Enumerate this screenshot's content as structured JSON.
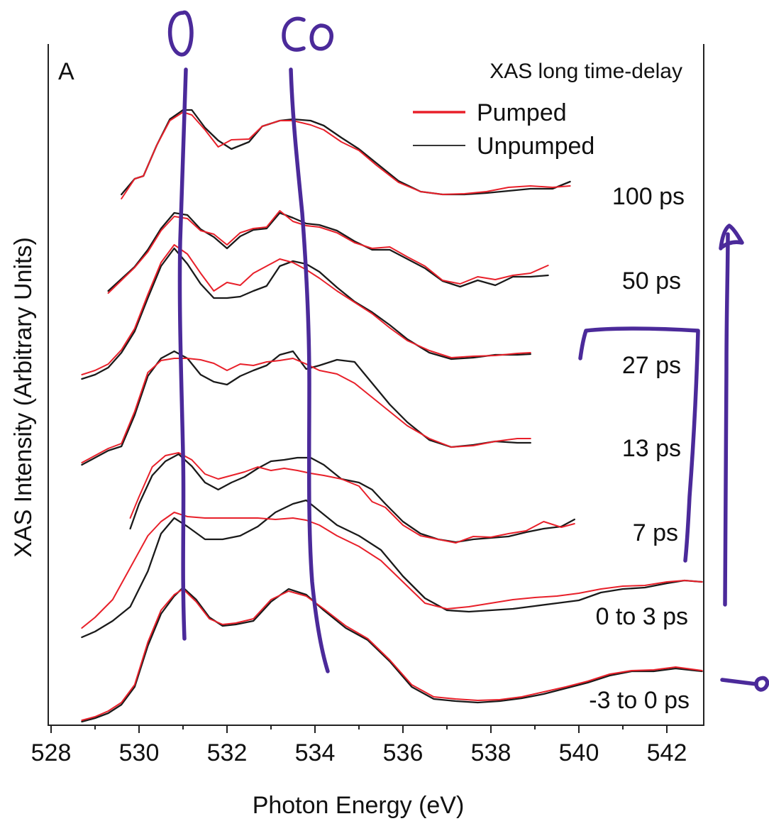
{
  "chart_data": {
    "type": "line",
    "panel_label": "A",
    "title": "XAS long time-delay",
    "xlabel": "Photon Energy (eV)",
    "ylabel": "XAS Intensity (Arbitrary Units)",
    "xlim": [
      528,
      542.8
    ],
    "xticks": [
      528,
      530,
      532,
      534,
      536,
      538,
      540,
      542
    ],
    "yticks_shown": false,
    "legend": {
      "placement": "top-right",
      "entries": [
        {
          "label": "Pumped",
          "color": "#e8202a"
        },
        {
          "label": "Unpumped",
          "color": "#1a1a1a"
        }
      ]
    },
    "colors": {
      "pumped": "#e8202a",
      "unpumped": "#1a1a1a",
      "annotation_ink": "#4b2a9a"
    },
    "handwritten_annotations": [
      "O",
      "CO"
    ],
    "traces": [
      {
        "delay": "100 ps",
        "pumped": {
          "x": [
            529.6,
            529.9,
            530.1,
            530.4,
            530.7,
            531.0,
            531.2,
            531.5,
            531.8,
            532.1,
            532.5,
            532.8,
            533.2,
            533.5,
            533.9,
            534.2,
            534.6,
            535.0,
            535.4,
            535.9,
            536.4,
            536.9,
            537.4,
            537.9,
            538.4,
            538.9,
            539.4,
            539.8
          ],
          "y": [
            280,
            252,
            248,
            205,
            170,
            158,
            162,
            183,
            207,
            197,
            196,
            178,
            170,
            170,
            176,
            183,
            200,
            212,
            233,
            257,
            270,
            274,
            273,
            270,
            264,
            262,
            264,
            262
          ]
        },
        "unpumped": {
          "x": [
            529.6,
            529.9,
            530.1,
            530.4,
            530.7,
            531.0,
            531.2,
            531.5,
            531.8,
            532.1,
            532.5,
            532.8,
            533.2,
            533.5,
            533.9,
            534.2,
            534.6,
            535.0,
            535.4,
            535.9,
            536.4,
            536.9,
            537.4,
            537.9,
            538.4,
            538.9,
            539.4,
            539.8
          ],
          "y": [
            274,
            252,
            248,
            205,
            168,
            155,
            155,
            180,
            198,
            210,
            200,
            178,
            170,
            168,
            170,
            177,
            194,
            210,
            230,
            255,
            270,
            274,
            274,
            272,
            269,
            266,
            266,
            256
          ]
        }
      },
      {
        "delay": "50 ps",
        "pumped": {
          "x": [
            529.3,
            529.6,
            529.9,
            530.2,
            530.5,
            530.8,
            531.1,
            531.4,
            531.7,
            532.0,
            532.3,
            532.6,
            532.9,
            533.2,
            533.5,
            533.8,
            534.1,
            534.5,
            534.9,
            535.3,
            535.7,
            536.1,
            536.5,
            536.9,
            537.3,
            537.7,
            538.1,
            538.5,
            538.9,
            539.3
          ],
          "y": [
            413,
            395,
            377,
            355,
            325,
            305,
            308,
            325,
            330,
            345,
            328,
            322,
            320,
            297,
            312,
            318,
            320,
            328,
            342,
            350,
            348,
            362,
            375,
            395,
            400,
            390,
            394,
            388,
            385,
            374
          ]
        },
        "unpumped": {
          "x": [
            529.3,
            529.6,
            529.9,
            530.2,
            530.5,
            530.8,
            531.1,
            531.4,
            531.7,
            532.0,
            532.3,
            532.6,
            532.9,
            533.2,
            533.5,
            533.8,
            534.1,
            534.5,
            534.9,
            535.3,
            535.7,
            536.1,
            536.5,
            536.9,
            537.3,
            537.7,
            538.1,
            538.5,
            538.9,
            539.3
          ],
          "y": [
            410,
            393,
            376,
            352,
            322,
            300,
            303,
            323,
            334,
            350,
            333,
            324,
            322,
            300,
            307,
            315,
            317,
            325,
            340,
            352,
            352,
            365,
            378,
            396,
            404,
            395,
            402,
            390,
            390,
            388
          ]
        }
      },
      {
        "delay": "27 ps",
        "pumped": {
          "x": [
            528.7,
            529.0,
            529.3,
            529.6,
            529.9,
            530.2,
            530.5,
            530.8,
            531.1,
            531.4,
            531.7,
            532.0,
            532.3,
            532.6,
            532.9,
            533.2,
            533.5,
            533.8,
            534.1,
            534.5,
            534.9,
            535.3,
            535.7,
            536.1,
            536.6,
            537.1,
            537.6,
            538.1,
            538.6,
            538.9
          ],
          "y": [
            528,
            522,
            513,
            493,
            463,
            415,
            370,
            345,
            358,
            385,
            410,
            398,
            402,
            385,
            375,
            365,
            370,
            380,
            392,
            410,
            426,
            442,
            462,
            480,
            494,
            504,
            502,
            501,
            498,
            497
          ]
        },
        "unpumped": {
          "x": [
            528.7,
            529.0,
            529.3,
            529.6,
            529.9,
            530.2,
            530.5,
            530.8,
            531.1,
            531.4,
            531.7,
            532.0,
            532.3,
            532.6,
            532.9,
            533.2,
            533.5,
            533.8,
            534.1,
            534.5,
            534.9,
            535.3,
            535.7,
            536.1,
            536.6,
            537.1,
            537.6,
            538.1,
            538.6,
            538.9
          ],
          "y": [
            534,
            528,
            518,
            497,
            467,
            420,
            375,
            350,
            372,
            400,
            420,
            420,
            418,
            410,
            403,
            375,
            368,
            372,
            383,
            405,
            425,
            440,
            458,
            478,
            497,
            506,
            504,
            500,
            500,
            499
          ]
        }
      },
      {
        "delay": "13 ps",
        "pumped": {
          "x": [
            528.7,
            529.0,
            529.3,
            529.6,
            529.9,
            530.2,
            530.5,
            530.8,
            531.1,
            531.4,
            531.7,
            532.0,
            532.3,
            532.6,
            532.9,
            533.2,
            533.5,
            533.8,
            534.1,
            534.5,
            534.9,
            535.3,
            535.7,
            536.1,
            536.6,
            537.1,
            537.6,
            538.1,
            538.6,
            538.9
          ],
          "y": [
            652,
            642,
            632,
            625,
            580,
            525,
            508,
            505,
            505,
            507,
            512,
            522,
            513,
            515,
            510,
            508,
            505,
            513,
            522,
            527,
            540,
            560,
            580,
            600,
            618,
            630,
            628,
            622,
            618,
            618
          ]
        },
        "unpumped": {
          "x": [
            528.7,
            529.0,
            529.3,
            529.6,
            529.9,
            530.2,
            530.5,
            530.8,
            531.1,
            531.4,
            531.7,
            532.0,
            532.3,
            532.6,
            532.9,
            533.2,
            533.5,
            533.8,
            534.1,
            534.5,
            534.9,
            535.3,
            535.7,
            536.1,
            536.6,
            537.1,
            537.6,
            538.1,
            538.6,
            538.9
          ],
          "y": [
            655,
            645,
            635,
            629,
            585,
            530,
            505,
            495,
            505,
            528,
            538,
            542,
            530,
            522,
            515,
            500,
            495,
            520,
            515,
            507,
            510,
            540,
            570,
            595,
            620,
            630,
            627,
            622,
            624,
            624
          ]
        }
      },
      {
        "delay": "7 ps",
        "pumped": {
          "x": [
            529.8,
            530.0,
            530.3,
            530.6,
            530.9,
            531.2,
            531.5,
            531.8,
            532.1,
            532.4,
            532.7,
            533.0,
            533.3,
            533.6,
            533.9,
            534.2,
            534.6,
            535.0,
            535.3,
            535.6,
            536.0,
            536.4,
            536.8,
            537.2,
            537.6,
            538.0,
            538.4,
            538.8,
            539.2,
            539.6,
            539.9
          ],
          "y": [
            730,
            700,
            658,
            642,
            638,
            648,
            668,
            675,
            670,
            665,
            658,
            663,
            660,
            663,
            667,
            670,
            675,
            685,
            707,
            715,
            740,
            755,
            760,
            765,
            756,
            757,
            752,
            748,
            735,
            743,
            738
          ]
        },
        "unpumped": {
          "x": [
            529.8,
            530.0,
            530.3,
            530.6,
            530.9,
            531.2,
            531.5,
            531.8,
            532.1,
            532.4,
            532.7,
            533.0,
            533.3,
            533.6,
            533.9,
            534.2,
            534.6,
            535.0,
            535.3,
            535.6,
            536.0,
            536.4,
            536.8,
            537.2,
            537.6,
            538.0,
            538.4,
            538.8,
            539.2,
            539.6,
            539.9
          ],
          "y": [
            745,
            710,
            670,
            650,
            640,
            657,
            680,
            690,
            680,
            672,
            660,
            650,
            648,
            645,
            645,
            655,
            675,
            680,
            690,
            710,
            735,
            752,
            760,
            764,
            760,
            758,
            756,
            750,
            745,
            742,
            732
          ]
        }
      },
      {
        "delay": "0 to 3 ps",
        "pumped": {
          "x": [
            528.7,
            529.0,
            529.4,
            529.8,
            530.2,
            530.5,
            530.8,
            531.1,
            531.5,
            531.9,
            532.3,
            532.7,
            533.1,
            533.5,
            533.8,
            534.1,
            534.5,
            535.0,
            535.5,
            536.0,
            536.5,
            537.0,
            537.5,
            538.0,
            538.5,
            539.0,
            539.5,
            540.0,
            540.5,
            541.0,
            541.5,
            542.0,
            542.4,
            542.8
          ],
          "y": [
            885,
            870,
            845,
            800,
            755,
            735,
            722,
            728,
            730,
            730,
            730,
            730,
            732,
            730,
            733,
            740,
            755,
            770,
            790,
            820,
            850,
            858,
            855,
            850,
            845,
            842,
            840,
            836,
            830,
            826,
            825,
            820,
            818,
            820
          ]
        },
        "unpumped": {
          "x": [
            528.7,
            529.0,
            529.4,
            529.8,
            530.2,
            530.5,
            530.8,
            531.1,
            531.5,
            531.9,
            532.3,
            532.7,
            533.1,
            533.5,
            533.8,
            534.1,
            534.5,
            535.0,
            535.5,
            536.0,
            536.5,
            537.0,
            537.5,
            538.0,
            538.5,
            539.0,
            539.5,
            540.0,
            540.5,
            541.0,
            541.5,
            542.0,
            542.4,
            542.8
          ],
          "y": [
            898,
            890,
            875,
            855,
            805,
            752,
            730,
            742,
            760,
            760,
            755,
            742,
            722,
            710,
            705,
            720,
            740,
            755,
            775,
            812,
            843,
            860,
            862,
            860,
            858,
            854,
            850,
            846,
            835,
            830,
            828,
            822,
            818,
            820
          ]
        }
      },
      {
        "delay": "-3 to 0 ps",
        "pumped": {
          "x": [
            528.7,
            529.0,
            529.3,
            529.6,
            529.9,
            530.2,
            530.5,
            530.8,
            531.0,
            531.3,
            531.6,
            531.9,
            532.2,
            532.6,
            533.0,
            533.4,
            533.8,
            534.2,
            534.7,
            535.2,
            535.7,
            536.2,
            536.7,
            537.2,
            537.7,
            538.2,
            538.7,
            539.2,
            539.7,
            540.2,
            540.7,
            541.2,
            541.7,
            542.2,
            542.8
          ],
          "y": [
            1015,
            1010,
            1002,
            990,
            965,
            905,
            860,
            838,
            830,
            848,
            872,
            880,
            878,
            872,
            845,
            833,
            840,
            858,
            882,
            900,
            930,
            965,
            982,
            985,
            987,
            986,
            982,
            975,
            968,
            960,
            950,
            945,
            944,
            940,
            945
          ]
        },
        "unpumped": {
          "x": [
            528.7,
            529.0,
            529.3,
            529.6,
            529.9,
            530.2,
            530.5,
            530.8,
            531.0,
            531.3,
            531.6,
            531.9,
            532.2,
            532.6,
            533.0,
            533.4,
            533.8,
            534.2,
            534.7,
            535.2,
            535.7,
            536.2,
            536.7,
            537.2,
            537.7,
            538.2,
            538.7,
            539.2,
            539.7,
            540.2,
            540.7,
            541.2,
            541.7,
            542.2,
            542.8
          ],
          "y": [
            1017,
            1012,
            1005,
            993,
            968,
            910,
            865,
            840,
            828,
            845,
            870,
            882,
            880,
            875,
            848,
            830,
            838,
            860,
            885,
            902,
            932,
            968,
            985,
            988,
            990,
            988,
            984,
            978,
            970,
            962,
            952,
            946,
            946,
            942,
            946
          ]
        }
      }
    ]
  }
}
